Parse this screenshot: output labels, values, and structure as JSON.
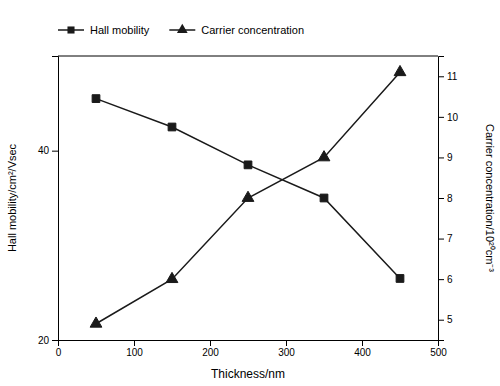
{
  "chart_data": {
    "type": "line",
    "x_label": "Thickness/nm",
    "y_label": "Hall mobility/cm²/Vsec",
    "y2_label": "Carrier concentration/10²⁰cm⁻³",
    "x": [
      50,
      150,
      250,
      350,
      450
    ],
    "series": [
      {
        "name": "Hall mobility",
        "color": "#1a1a1a",
        "marker": "square",
        "values": [
          45.5,
          42.5,
          38.5,
          35.0,
          26.5
        ]
      },
      {
        "name": "Carrier concentration",
        "color": "#1a1a1a",
        "marker": "triangle",
        "axis": "y2",
        "values": [
          4.9,
          6.0,
          8.0,
          9.0,
          11.1
        ]
      }
    ],
    "xlim": [
      0,
      500
    ],
    "xticks": [
      0,
      100,
      200,
      300,
      400,
      500
    ],
    "ylim": [
      20,
      50
    ],
    "yticks": [
      20,
      40
    ],
    "y2lim": [
      4.5,
      11.5
    ],
    "y2ticks": [
      5,
      6,
      7,
      8,
      9,
      10,
      11
    ],
    "grid": false,
    "legend": "upper left"
  }
}
